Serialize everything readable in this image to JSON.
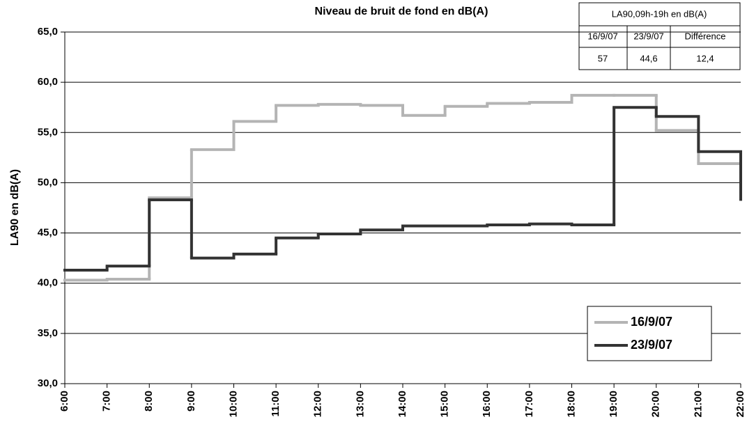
{
  "chart_data": {
    "type": "line",
    "drawstyle": "steps-post",
    "title": "Niveau de bruit de fond en dB(A)",
    "ylabel": "LA90 en dB(A)",
    "categories": [
      "6:00",
      "7:00",
      "8:00",
      "9:00",
      "10:00",
      "11:00",
      "12:00",
      "13:00",
      "14:00",
      "15:00",
      "16:00",
      "17:00",
      "18:00",
      "19:00",
      "20:00",
      "21:00",
      "22:00"
    ],
    "series": [
      {
        "name": "16/9/07",
        "color": "#b4b4b4",
        "values": [
          40.3,
          40.4,
          48.5,
          53.3,
          56.1,
          57.7,
          57.8,
          57.7,
          56.7,
          57.6,
          57.9,
          58.0,
          58.7,
          58.7,
          55.2,
          51.9,
          51.9
        ]
      },
      {
        "name": "23/9/07",
        "color": "#333333",
        "values": [
          41.3,
          41.7,
          48.3,
          42.5,
          42.9,
          44.5,
          44.9,
          45.3,
          45.7,
          45.7,
          45.8,
          45.9,
          45.8,
          57.5,
          56.6,
          53.1,
          48.2
        ]
      }
    ],
    "ylim": [
      30,
      65
    ],
    "yticks": [
      {
        "value": 30,
        "label": "30,0"
      },
      {
        "value": 35,
        "label": "35,0"
      },
      {
        "value": 40,
        "label": "40,0"
      },
      {
        "value": 45,
        "label": "45,0"
      },
      {
        "value": 50,
        "label": "50,0"
      },
      {
        "value": 55,
        "label": "55,0"
      },
      {
        "value": 60,
        "label": "60,0"
      },
      {
        "value": 65,
        "label": "65,0"
      }
    ],
    "grid": true,
    "legend": "lower right",
    "table": {
      "title": "LA90,09h-19h en dB(A)",
      "header": [
        "16/9/07",
        "23/9/07",
        "Différence"
      ],
      "row": [
        "57",
        "44,6",
        "12,4"
      ]
    }
  }
}
